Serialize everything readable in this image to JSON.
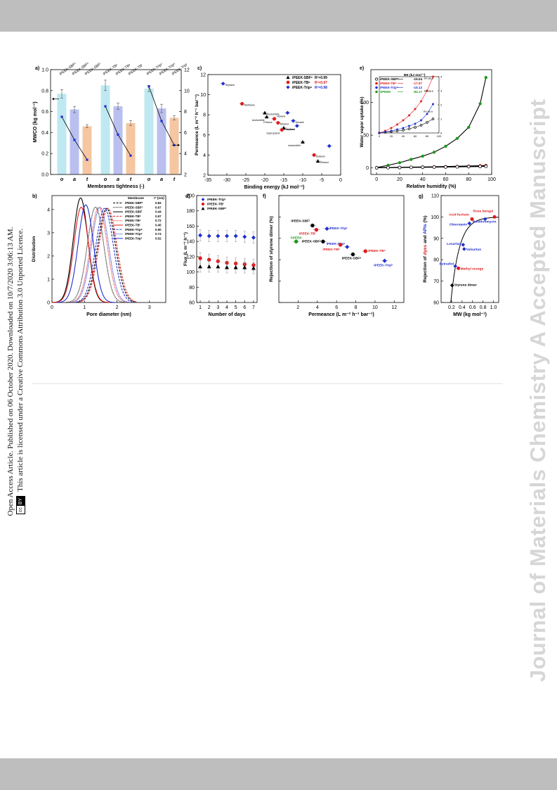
{
  "side_note": {
    "published": "Open Access Article. Published on 06 October 2020. Downloaded on 10/7/2020 3:06:13 AM.",
    "license": "This article is licensed under a Creative Commons Attribution 3.0 Unported Licence.",
    "badge_cc": "cc",
    "badge_by": "BY"
  },
  "watermark": "Journal of Materials Chemistry A Accepted Manuscript",
  "colors": {
    "black": "#000000",
    "red": "#e01b1b",
    "blue": "#1f2fd0",
    "green": "#1a9a1a",
    "cyan_bar": "#bfe9f1",
    "blue_bar": "#b9c0ef",
    "orange_bar": "#f5c6a1",
    "band": "#bebebe",
    "watermark": "#d6d6d6"
  },
  "chart_data": [
    {
      "panel": "a",
      "type": "bar",
      "ylabel": "MWCO (kg mol⁻¹)",
      "y2label": "",
      "xlabel": "Membranes tightness (-)",
      "ylim": [
        0,
        1.0
      ],
      "y2lim": [
        2,
        12
      ],
      "yticks": [
        "0.0",
        "0.2",
        "0.4",
        "0.6",
        "0.8",
        "1.0"
      ],
      "y2ticks": [
        "2",
        "4",
        "6",
        "8",
        "10",
        "12"
      ],
      "groups": [
        {
          "categories": [
            "o",
            "a",
            "t"
          ],
          "labels": [
            "iPEEK-SBFᵒ",
            "iPEEK-SBFᵃ",
            "iPEEK-SBFᵗ"
          ],
          "mwco": [
            0.77,
            0.62,
            0.46
          ],
          "mwco_err": [
            0.04,
            0.03,
            0.015
          ],
          "secondary": [
            7.5,
            5.3,
            3.4
          ]
        },
        {
          "categories": [
            "o",
            "a",
            "t"
          ],
          "labels": [
            "iPEEK-TBᵒ",
            "iPEEK-TBᵃ",
            "iPEEK-TBᵗ"
          ],
          "mwco": [
            0.85,
            0.65,
            0.49
          ],
          "mwco_err": [
            0.05,
            0.03,
            0.025
          ],
          "secondary": [
            8.5,
            5.8,
            3.8
          ]
        },
        {
          "categories": [
            "o",
            "a",
            "t"
          ],
          "labels": [
            "iPEEK-Tripᵒ",
            "iPEEK-Tripᵃ",
            "iPEEK-Tripᵗ"
          ],
          "mwco": [
            0.82,
            0.63,
            0.54
          ],
          "mwco_err": [
            0.03,
            0.04,
            0.02
          ],
          "secondary": [
            10.4,
            7.1,
            4.8
          ]
        }
      ]
    },
    {
      "panel": "c",
      "type": "scatter",
      "xlabel": "Binding energy (kJ mol⁻¹)",
      "ylabel": "Permeance (L m⁻² h⁻¹ bar⁻¹)",
      "xlim": [
        -35,
        0
      ],
      "ylim": [
        2,
        12
      ],
      "xticks": [
        "-35",
        "-30",
        "-25",
        "-20",
        "-15",
        "-10",
        "-5",
        "0"
      ],
      "yticks": [
        "2",
        "4",
        "6",
        "8",
        "10",
        "12"
      ],
      "series": [
        {
          "name": "iPEEK-SBFᵒ",
          "r2": "R²=0.99",
          "color": "black",
          "marker": "triangle",
          "points": [
            [
              -20,
              8.2
            ],
            [
              -19.5,
              7.8
            ],
            [
              -15,
              6.7
            ],
            [
              -10,
              5.3
            ],
            [
              -6,
              3.4
            ]
          ]
        },
        {
          "name": "iPEEK-TBᵒ",
          "r2": "R²=0.97",
          "color": "red",
          "marker": "circle",
          "points": [
            [
              -26,
              9.1
            ],
            [
              -17.5,
              7.6
            ],
            [
              -16.5,
              7.2
            ],
            [
              -15.5,
              6.5
            ],
            [
              -7,
              4.0
            ]
          ]
        },
        {
          "name": "iPEEK-Tripᵒ",
          "r2": "R²=0.98",
          "color": "blue",
          "marker": "diamond",
          "points": [
            [
              -31,
              11.1
            ],
            [
              -14,
              8.2
            ],
            [
              -12.5,
              7.4
            ],
            [
              -11.5,
              6.9
            ],
            [
              -3,
              4.9
            ]
          ]
        }
      ],
      "annotations": [
        "Acetonitrile",
        "Acetonitrile",
        "Acetone",
        "Acetonitrile",
        "Ethanol",
        "Methanol",
        "Ethanol",
        "Ethanol",
        "Isopropanol",
        "Butanol",
        "Heptane",
        "Hexane",
        "Hexane",
        "Heptane"
      ]
    },
    {
      "panel": "e",
      "type": "line",
      "xlabel": "Relative humidity (%)",
      "ylabel": "Water vapor uptake (%)",
      "xlim": [
        -5,
        100
      ],
      "ylim": [
        -10,
        150
      ],
      "xticks": [
        "0",
        "20",
        "40",
        "60",
        "80",
        "100"
      ],
      "yticks": [
        "0",
        "50",
        "100"
      ],
      "legend_title": "BE (kJ mol⁻¹)",
      "series": [
        {
          "name": "iPEEK-SBFᵒ",
          "be": "-15.04",
          "color": "black",
          "marker": "open-circle",
          "x": [
            0,
            10,
            20,
            30,
            40,
            50,
            60,
            70,
            80,
            90,
            95
          ],
          "y": [
            0.2,
            0.4,
            0.6,
            0.8,
            1.0,
            1.2,
            1.4,
            1.6,
            1.9,
            2.2,
            2.4
          ]
        },
        {
          "name": "iPEEK-TBᵒ",
          "be": "-17.97",
          "color": "red",
          "marker": "circle",
          "x": [
            0,
            10,
            20,
            30,
            40,
            50,
            60,
            70,
            80,
            90,
            95
          ],
          "y": [
            0.3,
            0.6,
            0.9,
            1.2,
            1.5,
            1.8,
            2.1,
            2.5,
            2.9,
            3.4,
            3.8
          ]
        },
        {
          "name": "iPEEK-Tripᵒ",
          "be": "-15.12",
          "color": "blue",
          "marker": "circle",
          "x": [
            0,
            10,
            20,
            30,
            40,
            50,
            60,
            70,
            80,
            90,
            95
          ],
          "y": [
            0.2,
            0.4,
            0.6,
            0.8,
            1.0,
            1.2,
            1.4,
            1.7,
            2.0,
            2.4,
            2.8
          ]
        },
        {
          "name": "SPEEK",
          "be": "-84.17",
          "color": "green",
          "marker": "circle",
          "x": [
            0,
            10,
            20,
            30,
            40,
            50,
            60,
            70,
            80,
            90,
            95
          ],
          "y": [
            0.5,
            4,
            8,
            13,
            18,
            24,
            33,
            45,
            62,
            98,
            138
          ]
        }
      ],
      "inset": {
        "xticks": [
          "0",
          "20",
          "40",
          "60",
          "80",
          "100"
        ],
        "yticks": [
          "0",
          "1",
          "2",
          "3",
          "4"
        ],
        "ylim": [
          0,
          4
        ],
        "annotations": [
          "R²=99.9",
          "R²=99.9",
          "R²=99.9"
        ],
        "series": [
          {
            "color": "black",
            "marker": "open-circle",
            "x": [
              0,
              10,
              20,
              30,
              40,
              50,
              60,
              70,
              80,
              90
            ],
            "y": [
              0.0,
              0.05,
              0.1,
              0.15,
              0.2,
              0.3,
              0.4,
              0.55,
              0.75,
              1.0
            ]
          },
          {
            "color": "red",
            "marker": "circle",
            "x": [
              0,
              10,
              20,
              30,
              40,
              50,
              60,
              70,
              80,
              90
            ],
            "y": [
              0.0,
              0.15,
              0.35,
              0.6,
              0.9,
              1.25,
              1.7,
              2.25,
              3.0,
              4.0
            ]
          },
          {
            "color": "blue",
            "marker": "circle",
            "x": [
              0,
              10,
              20,
              30,
              40,
              50,
              60,
              70,
              80,
              90
            ],
            "y": [
              0.0,
              0.08,
              0.15,
              0.25,
              0.35,
              0.5,
              0.65,
              0.9,
              1.35,
              2.05
            ]
          }
        ]
      }
    },
    {
      "panel": "b",
      "type": "line",
      "xlabel": "Pore diameter (nm)",
      "ylabel": "Distribution",
      "xlim": [
        0,
        3.5
      ],
      "ylim": [
        0,
        4.6
      ],
      "xticks": [
        "0",
        "1",
        "2",
        "3"
      ],
      "yticks": [
        "0",
        "1",
        "2",
        "3",
        "4"
      ],
      "legend_title_name": "Membrane",
      "legend_title_unit": "r* (nm)",
      "series": [
        {
          "name": "iPEEK-SBFᵒ",
          "r": "0.84",
          "color": "black",
          "style": "dashed",
          "peak": 1.68,
          "height": 4.05
        },
        {
          "name": "iPEEK-SBFᵃ",
          "r": "0.67",
          "color": "black",
          "style": "dotted",
          "peak": 1.34,
          "height": 4.1
        },
        {
          "name": "iPEEK-SBFᵗ",
          "r": "0.44",
          "color": "black",
          "style": "solid",
          "peak": 0.88,
          "height": 4.5
        },
        {
          "name": "iPEEK-TBᵒ",
          "r": "0.97",
          "color": "red",
          "style": "dashed",
          "peak": 1.72,
          "height": 4.05
        },
        {
          "name": "iPEEK-TBᵃ",
          "r": "0.72",
          "color": "red",
          "style": "dotted",
          "peak": 1.44,
          "height": 4.1
        },
        {
          "name": "iPEEK-TBᵗ",
          "r": "0.45",
          "color": "red",
          "style": "solid",
          "peak": 0.9,
          "height": 4.1
        },
        {
          "name": "iPEEK-Tripᵒ",
          "r": "0.90",
          "color": "blue",
          "style": "dashed",
          "peak": 1.62,
          "height": 4.05
        },
        {
          "name": "iPEEK-Tripᵃ",
          "r": "0.74",
          "color": "blue",
          "style": "dotted",
          "peak": 1.48,
          "height": 4.1
        },
        {
          "name": "iPEEK-Tripᵗ",
          "r": "0.52",
          "color": "blue",
          "style": "solid",
          "peak": 1.04,
          "height": 4.2
        }
      ]
    },
    {
      "panel": "d",
      "type": "scatter",
      "xlabel": "Number of days",
      "ylabel": "Flux (L m⁻² h⁻¹)",
      "xlim": [
        0.6,
        7.4
      ],
      "ylim": [
        60,
        200
      ],
      "xticks": [
        "1",
        "2",
        "3",
        "4",
        "5",
        "6",
        "7"
      ],
      "yticks": [
        "60",
        "80",
        "100",
        "120",
        "140",
        "160",
        "180",
        "200"
      ],
      "series": [
        {
          "name": "iPEEK-Tripᵗ",
          "color": "blue",
          "marker": "diamond",
          "x": [
            1,
            2,
            3,
            4,
            5,
            6,
            7
          ],
          "y": [
            148,
            147,
            147,
            147,
            147,
            146,
            145
          ]
        },
        {
          "name": "iPEEK-TBᵗ",
          "color": "red",
          "marker": "circle",
          "x": [
            1,
            2,
            3,
            4,
            5,
            6,
            7
          ],
          "y": [
            118,
            116,
            114,
            112,
            111,
            110,
            109
          ]
        },
        {
          "name": "iPEEK-SBFᵗ",
          "color": "black",
          "marker": "triangle",
          "x": [
            1,
            2,
            3,
            4,
            5,
            6,
            7
          ],
          "y": [
            107,
            107,
            107,
            106,
            106,
            106,
            105
          ]
        }
      ]
    },
    {
      "panel": "f",
      "type": "scatter",
      "xlabel": "Permeance (L m⁻² h⁻¹ bar⁻¹)",
      "ylabel": "Rejection of styrene dimer (%)",
      "xlim": [
        0,
        13
      ],
      "ylim": [
        0,
        100
      ],
      "xticks": [
        "2",
        "4",
        "6",
        "8",
        "10",
        "12"
      ],
      "yticks": [
        "0",
        "20",
        "40",
        "60",
        "80",
        "100"
      ],
      "points": [
        {
          "label": "SPEEK",
          "color": "green",
          "marker": "circle",
          "x": 1.8,
          "y": 57
        },
        {
          "label": "iPEEK-SBFᵗ",
          "color": "black",
          "marker": "circle",
          "x": 3.5,
          "y": 72
        },
        {
          "label": "iPEEK-TBᵗ",
          "color": "red",
          "marker": "circle",
          "x": 3.9,
          "y": 68
        },
        {
          "label": "iPEEK-Tripᵗ",
          "color": "blue",
          "marker": "diamond",
          "x": 5.0,
          "y": 69
        },
        {
          "label": "iPEEK-SBFᵃ",
          "color": "black",
          "marker": "circle",
          "x": 4.6,
          "y": 57
        },
        {
          "label": "iPEEK-Tripᵃ",
          "color": "blue",
          "marker": "diamond",
          "x": 7.1,
          "y": 52
        },
        {
          "label": "iPEEK-TBᵃ",
          "color": "red",
          "marker": "circle",
          "x": 6.4,
          "y": 54
        },
        {
          "label": "iPEEK-SBFᵒ",
          "color": "black",
          "marker": "circle",
          "x": 7.7,
          "y": 45
        },
        {
          "label": "iPEEK-TBᵒ",
          "color": "red",
          "marker": "circle",
          "x": 9.0,
          "y": 48
        },
        {
          "label": "iPEEK-Tripᵒ",
          "color": "blue",
          "marker": "diamond",
          "x": 11.0,
          "y": 39
        }
      ]
    },
    {
      "panel": "g",
      "type": "scatter",
      "xlabel": "MW (kg mol⁻¹)",
      "ylabel_pre": "Rejection of ",
      "ylabel_dyes": "dyes",
      "ylabel_mid": " and ",
      "ylabel_apis": "APIs",
      "ylabel_post": " (%)",
      "xlim": [
        0,
        1.1
      ],
      "ylim": [
        60,
        110
      ],
      "xticks": [
        "0.2",
        "0.4",
        "0.6",
        "0.8",
        "1.0"
      ],
      "yticks": [
        "60",
        "70",
        "80",
        "90",
        "100",
        "110"
      ],
      "points": [
        {
          "label": "Styrene dimer",
          "color": "black",
          "marker": "diamond",
          "x": 0.21,
          "y": 68
        },
        {
          "label": "Methyl orange",
          "color": "red",
          "marker": "circle",
          "x": 0.33,
          "y": 76
        },
        {
          "label": "Estradiol",
          "color": "blue",
          "marker": "diamond",
          "x": 0.27,
          "y": 77
        },
        {
          "label": "Valsartan",
          "color": "blue",
          "marker": "diamond",
          "x": 0.44,
          "y": 85
        },
        {
          "label": "Losartan",
          "color": "blue",
          "marker": "diamond",
          "x": 0.42,
          "y": 87
        },
        {
          "label": "Oleuropein",
          "color": "blue",
          "marker": "diamond",
          "x": 0.54,
          "y": 97
        },
        {
          "label": "Acid fuchsin",
          "color": "red",
          "marker": "circle",
          "x": 0.59,
          "y": 99
        },
        {
          "label": "Roxithromycin",
          "color": "blue",
          "marker": "diamond",
          "x": 0.84,
          "y": 99
        },
        {
          "label": "Rose bengal",
          "color": "red",
          "marker": "circle",
          "x": 1.02,
          "y": 100
        }
      ]
    }
  ]
}
